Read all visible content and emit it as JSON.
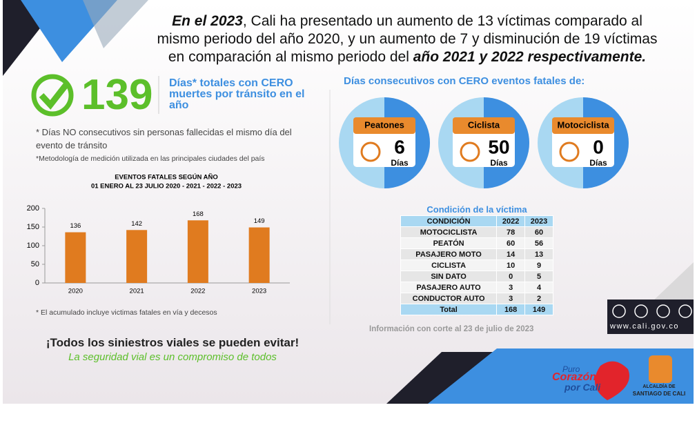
{
  "headline": {
    "line1_bold": "En el 2023",
    "line1": ", Cali ha presentado un aumento de 13 víctimas comparado al",
    "line2": "mismo periodo del año 2020, y un aumento de 7 y disminución de 19 víctimas",
    "line3": "en comparación al mismo periodo del ",
    "line3_bold": "año 2021 y 2022 respectivamente."
  },
  "stat": {
    "value": "139",
    "label": "Días* totales con CERO muertes por tránsito en el año"
  },
  "notes": {
    "note1": "* Días NO consecutivos sin personas fallecidas el mismo día del evento de tránsito",
    "note2": "*Metodología de medición utilizada en las principales ciudades del país",
    "note3": "* El acumulado incluye victimas fatales en vía y decesos"
  },
  "chart_data": {
    "type": "bar",
    "title": "EVENTOS FATALES SEGÚN AÑO",
    "subtitle": "01 ENERO AL 23 JULIO 2020 - 2021 - 2022 - 2023",
    "categories": [
      "2020",
      "2021",
      "2022",
      "2023"
    ],
    "values": [
      136,
      142,
      168,
      149
    ],
    "color": "#e07b1f",
    "ylim": [
      0,
      200
    ],
    "yticks": [
      0,
      50,
      100,
      150,
      200
    ]
  },
  "consecutive": {
    "title": "Días consecutivos con CERO eventos fatales de:",
    "cards": [
      {
        "label": "Peatones",
        "value": "6",
        "unit": "Días"
      },
      {
        "label": "Ciclista",
        "value": "50",
        "unit": "Días"
      },
      {
        "label": "Motociclista",
        "value": "0",
        "unit": "Días"
      }
    ]
  },
  "table": {
    "title": "Condición de la víctima",
    "header": [
      "CONDICIÓN",
      "2022",
      "2023"
    ],
    "rows": [
      [
        "MOTOCICLISTA",
        78,
        60
      ],
      [
        "PEATÓN",
        60,
        56
      ],
      [
        "PASAJERO MOTO",
        14,
        13
      ],
      [
        "CICLISTA",
        10,
        9
      ],
      [
        "SIN DATO",
        0,
        5
      ],
      [
        "PASAJERO AUTO",
        3,
        4
      ],
      [
        "CONDUCTOR AUTO",
        3,
        2
      ],
      [
        "Total",
        168,
        149
      ]
    ]
  },
  "footnote": "Información con corte al 23 de julio de 2023",
  "website": "www.cali.gov.co",
  "slogan": {
    "main": "¡Todos los siniestros viales se pueden evitar!",
    "sub": "La seguridad vial es un compromiso de todos"
  },
  "logos": {
    "puro": "Puro",
    "corazon": "Corazón",
    "porcali": "por Cali",
    "alcaldia1": "ALCALDÍA DE",
    "alcaldia2": "SANTIAGO DE CALI"
  }
}
